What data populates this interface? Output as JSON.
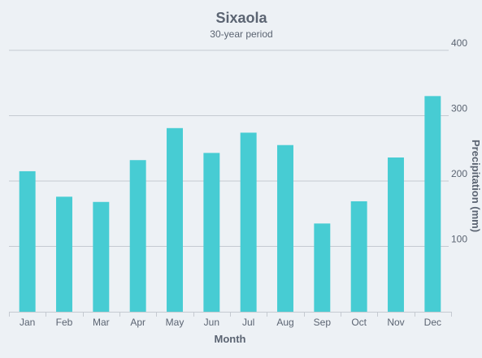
{
  "chart_data": {
    "type": "bar",
    "title": "Sixaola",
    "subtitle": "30-year period",
    "xlabel": "Month",
    "ylabel": "Precipitation (mm)",
    "categories": [
      "Jan",
      "Feb",
      "Mar",
      "Apr",
      "May",
      "Jun",
      "Jul",
      "Aug",
      "Sep",
      "Oct",
      "Nov",
      "Dec"
    ],
    "values": [
      215,
      176,
      168,
      232,
      281,
      243,
      274,
      255,
      135,
      169,
      236,
      330
    ],
    "ylim": [
      0,
      400
    ],
    "yticks": [
      100,
      200,
      300,
      400
    ],
    "y_axis_side": "right",
    "grid": true,
    "bar_color": "#47ccd3",
    "grid_color": "#c5cad1",
    "text_color": "#5b6472"
  }
}
